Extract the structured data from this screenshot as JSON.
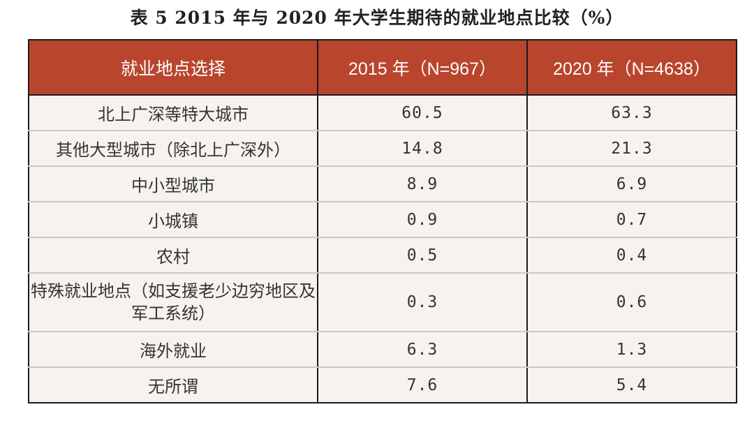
{
  "title": "表 5  2015 年与 2020 年大学生期待的就业地点比较（%）",
  "colors": {
    "header_bg": "#b9452d",
    "header_text": "#ffffff",
    "row_bg": "#f6f3ef",
    "border": "#1a1a1a"
  },
  "table": {
    "headers": [
      "就业地点选择",
      "2015 年（N=967）",
      "2020 年（N=4638）"
    ],
    "rows": [
      {
        "location": "北上广深等特大城市",
        "y2015": "60.5",
        "y2020": "63.3"
      },
      {
        "location": "其他大型城市（除北上广深外）",
        "y2015": "14.8",
        "y2020": "21.3"
      },
      {
        "location": "中小型城市",
        "y2015": "8.9",
        "y2020": "6.9"
      },
      {
        "location": "小城镇",
        "y2015": "0.9",
        "y2020": "0.7"
      },
      {
        "location": "农村",
        "y2015": "0.5",
        "y2020": "0.4"
      },
      {
        "location": "特殊就业地点（如支援老少边穷地区及军工系统）",
        "y2015": "0.3",
        "y2020": "0.6"
      },
      {
        "location": "海外就业",
        "y2015": "6.3",
        "y2020": "1.3"
      },
      {
        "location": "无所谓",
        "y2015": "7.6",
        "y2020": "5.4"
      }
    ]
  }
}
